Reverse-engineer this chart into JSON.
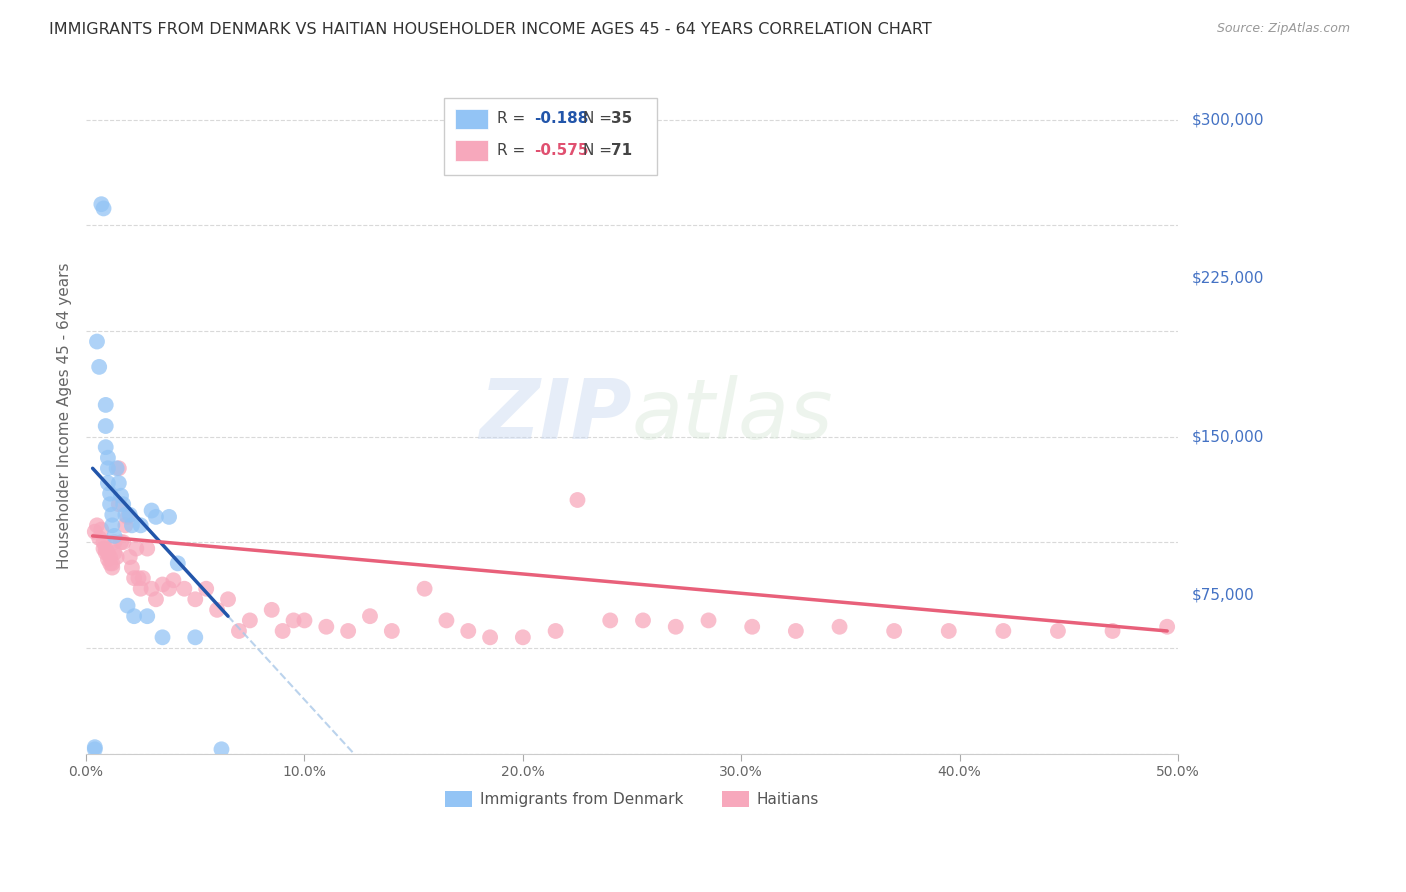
{
  "title": "IMMIGRANTS FROM DENMARK VS HAITIAN HOUSEHOLDER INCOME AGES 45 - 64 YEARS CORRELATION CHART",
  "source": "Source: ZipAtlas.com",
  "ylabel": "Householder Income Ages 45 - 64 years",
  "xlim": [
    0.0,
    0.5
  ],
  "ylim": [
    0,
    320000
  ],
  "yticks": [
    0,
    75000,
    150000,
    225000,
    300000
  ],
  "ytick_labels": [
    "",
    "$75,000",
    "$150,000",
    "$225,000",
    "$300,000"
  ],
  "xticks": [
    0.0,
    0.1,
    0.2,
    0.3,
    0.4,
    0.5
  ],
  "xtick_labels": [
    "0.0%",
    "10.0%",
    "20.0%",
    "30.0%",
    "40.0%",
    "50.0%"
  ],
  "background_color": "#ffffff",
  "grid_color": "#d0d0d0",
  "denmark_color": "#93c4f5",
  "haiti_color": "#f7a8bc",
  "denmark_line_color": "#2255aa",
  "haiti_line_color": "#e8607a",
  "legend_denmark_color": "#93c4f5",
  "legend_haiti_color": "#f7a8bc",
  "R_denmark": -0.188,
  "N_denmark": 35,
  "R_haiti": -0.575,
  "N_haiti": 71,
  "denmark_x": [
    0.004,
    0.004,
    0.005,
    0.006,
    0.007,
    0.008,
    0.009,
    0.009,
    0.009,
    0.01,
    0.01,
    0.01,
    0.011,
    0.011,
    0.012,
    0.012,
    0.013,
    0.014,
    0.015,
    0.016,
    0.017,
    0.018,
    0.019,
    0.02,
    0.021,
    0.022,
    0.025,
    0.028,
    0.03,
    0.032,
    0.035,
    0.038,
    0.042,
    0.05,
    0.062
  ],
  "denmark_y": [
    2000,
    3000,
    195000,
    183000,
    260000,
    258000,
    165000,
    155000,
    145000,
    140000,
    135000,
    128000,
    123000,
    118000,
    113000,
    108000,
    103000,
    135000,
    128000,
    122000,
    118000,
    113000,
    70000,
    113000,
    108000,
    65000,
    108000,
    65000,
    115000,
    112000,
    55000,
    112000,
    90000,
    55000,
    2000
  ],
  "haiti_x": [
    0.004,
    0.005,
    0.006,
    0.007,
    0.008,
    0.008,
    0.009,
    0.009,
    0.01,
    0.01,
    0.011,
    0.011,
    0.012,
    0.012,
    0.013,
    0.013,
    0.014,
    0.015,
    0.015,
    0.016,
    0.017,
    0.018,
    0.019,
    0.02,
    0.021,
    0.022,
    0.023,
    0.024,
    0.025,
    0.026,
    0.028,
    0.03,
    0.032,
    0.035,
    0.038,
    0.04,
    0.045,
    0.05,
    0.055,
    0.06,
    0.065,
    0.07,
    0.075,
    0.085,
    0.09,
    0.095,
    0.1,
    0.11,
    0.12,
    0.13,
    0.14,
    0.155,
    0.165,
    0.175,
    0.185,
    0.2,
    0.215,
    0.225,
    0.24,
    0.255,
    0.27,
    0.285,
    0.305,
    0.325,
    0.345,
    0.37,
    0.395,
    0.42,
    0.445,
    0.47,
    0.495
  ],
  "haiti_y": [
    105000,
    108000,
    102000,
    106000,
    100000,
    97000,
    97000,
    95000,
    95000,
    92000,
    93000,
    90000,
    90000,
    88000,
    100000,
    95000,
    93000,
    135000,
    118000,
    100000,
    100000,
    108000,
    112000,
    93000,
    88000,
    83000,
    97000,
    83000,
    78000,
    83000,
    97000,
    78000,
    73000,
    80000,
    78000,
    82000,
    78000,
    73000,
    78000,
    68000,
    73000,
    58000,
    63000,
    68000,
    58000,
    63000,
    63000,
    60000,
    58000,
    65000,
    58000,
    78000,
    63000,
    58000,
    55000,
    55000,
    58000,
    120000,
    63000,
    63000,
    60000,
    63000,
    60000,
    58000,
    60000,
    58000,
    58000,
    58000,
    58000,
    58000,
    60000
  ]
}
